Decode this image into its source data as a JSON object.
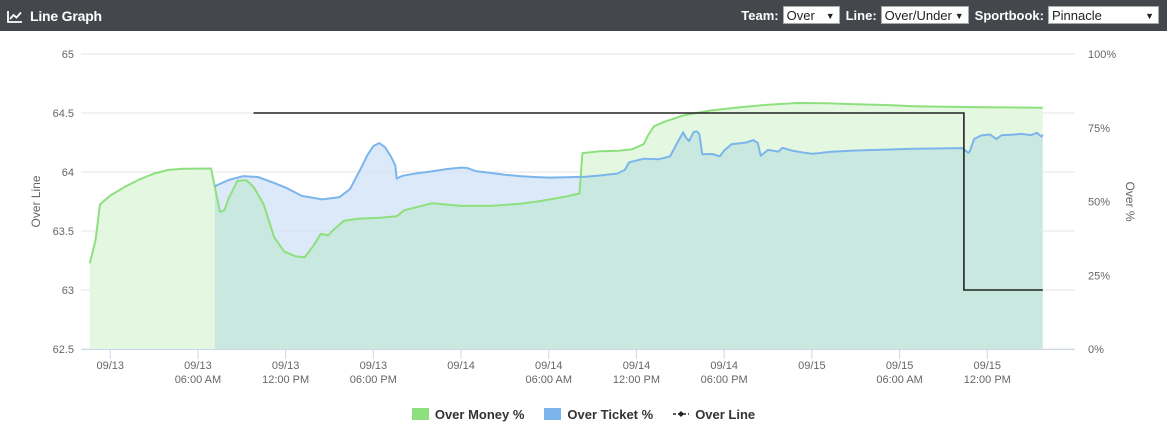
{
  "header": {
    "title": "Line Graph",
    "icon": "line-chart-icon",
    "controls": {
      "team_label": "Team:",
      "team_value": "Over",
      "line_label": "Line:",
      "line_value": "Over/Under",
      "sportsbook_label": "Sportbook:",
      "sportsbook_value": "Pinnacle"
    }
  },
  "colors": {
    "header_bg": "#44474c",
    "money": "#8ee07f",
    "money_fill": "#e3f8df",
    "ticket": "#7cb5ec",
    "ticket_fill": "#cfe1f6",
    "overlap_fill": "#c9e9e0",
    "over_line": "#222222"
  },
  "chart_data": {
    "type": "line",
    "title": "",
    "xlabel": "",
    "ylabel_left": "Over Line",
    "ylabel_right": "Over %",
    "ylim_left": [
      62.5,
      65
    ],
    "ylim_right": [
      0,
      100
    ],
    "yticks_left": [
      "62.5",
      "63",
      "63.5",
      "64",
      "64.5",
      "65"
    ],
    "yticks_right": [
      "0%",
      "25%",
      "50%",
      "75%",
      "100%"
    ],
    "x_range_hours": [
      -2,
      66
    ],
    "x_ticks": [
      {
        "t": 0,
        "line1": "09/13",
        "line2": ""
      },
      {
        "t": 6,
        "line1": "09/13",
        "line2": "06:00 AM"
      },
      {
        "t": 12,
        "line1": "09/13",
        "line2": "12:00 PM"
      },
      {
        "t": 18,
        "line1": "09/13",
        "line2": "06:00 PM"
      },
      {
        "t": 24,
        "line1": "09/14",
        "line2": ""
      },
      {
        "t": 30,
        "line1": "09/14",
        "line2": "06:00 AM"
      },
      {
        "t": 36,
        "line1": "09/14",
        "line2": "12:00 PM"
      },
      {
        "t": 42,
        "line1": "09/14",
        "line2": "06:00 PM"
      },
      {
        "t": 48,
        "line1": "09/15",
        "line2": ""
      },
      {
        "t": 54,
        "line1": "09/15",
        "line2": "06:00 AM"
      },
      {
        "t": 60,
        "line1": "09/15",
        "line2": "12:00 PM"
      }
    ],
    "grid": true,
    "legend_position": "bottom-center",
    "series": [
      {
        "name": "Over Money %",
        "axis": "right",
        "kind": "area",
        "points": [
          [
            -1.4,
            29
          ],
          [
            -1.0,
            37
          ],
          [
            -0.7,
            49
          ],
          [
            0,
            52
          ],
          [
            1,
            55
          ],
          [
            2,
            57.5
          ],
          [
            3,
            59.5
          ],
          [
            4,
            60.7
          ],
          [
            5,
            61.1
          ],
          [
            6.9,
            61.2
          ],
          [
            7.15,
            55
          ],
          [
            7.5,
            46.5
          ],
          [
            7.8,
            47
          ],
          [
            8.1,
            51
          ],
          [
            8.7,
            57
          ],
          [
            9.3,
            57.2
          ],
          [
            9.8,
            55
          ],
          [
            10.5,
            49
          ],
          [
            11.2,
            38
          ],
          [
            11.9,
            33
          ],
          [
            12.7,
            31.4
          ],
          [
            13.3,
            31.1
          ],
          [
            13.9,
            35
          ],
          [
            14.4,
            39
          ],
          [
            14.9,
            38.5
          ],
          [
            15.4,
            41
          ],
          [
            16,
            43.5
          ],
          [
            17,
            44.2
          ],
          [
            18.5,
            44.5
          ],
          [
            19.6,
            45
          ],
          [
            20.1,
            47
          ],
          [
            22,
            49.4
          ],
          [
            24,
            48.5
          ],
          [
            26,
            48.5
          ],
          [
            28,
            49.2
          ],
          [
            29.5,
            50.2
          ],
          [
            31.2,
            51.7
          ],
          [
            32.1,
            52.7
          ],
          [
            32.3,
            66.4
          ],
          [
            33.5,
            67
          ],
          [
            34.8,
            67.2
          ],
          [
            35.7,
            67.7
          ],
          [
            36.5,
            69.5
          ],
          [
            36.8,
            72.5
          ],
          [
            37.2,
            75.5
          ],
          [
            37.9,
            77
          ],
          [
            39.3,
            79.3
          ],
          [
            41,
            80.8
          ],
          [
            43,
            81.9
          ],
          [
            45,
            82.8
          ],
          [
            47,
            83.4
          ],
          [
            49,
            83.3
          ],
          [
            51,
            83
          ],
          [
            53,
            82.7
          ],
          [
            55,
            82.3
          ],
          [
            57,
            82.1
          ],
          [
            59,
            82
          ],
          [
            61,
            81.9
          ],
          [
            63.8,
            81.8
          ]
        ]
      },
      {
        "name": "Over Ticket %",
        "axis": "right",
        "kind": "area",
        "points": [
          [
            7.15,
            55.2
          ],
          [
            8.1,
            57.3
          ],
          [
            9.1,
            58.6
          ],
          [
            10.1,
            58.3
          ],
          [
            11.1,
            56.5
          ],
          [
            12.1,
            54.5
          ],
          [
            13.1,
            51.9
          ],
          [
            14.5,
            50.7
          ],
          [
            15.7,
            51.5
          ],
          [
            16.4,
            54.2
          ],
          [
            17.2,
            61.8
          ],
          [
            17.6,
            65.8
          ],
          [
            18,
            68.8
          ],
          [
            18.4,
            69.8
          ],
          [
            18.8,
            68.4
          ],
          [
            19.2,
            65.3
          ],
          [
            19.5,
            62.2
          ],
          [
            19.6,
            57.8
          ],
          [
            20,
            58.7
          ],
          [
            21,
            59.6
          ],
          [
            22,
            60.2
          ],
          [
            23,
            61
          ],
          [
            24,
            61.5
          ],
          [
            24.4,
            61.4
          ],
          [
            25,
            60.3
          ],
          [
            26,
            59.7
          ],
          [
            27,
            59.1
          ],
          [
            28,
            58.6
          ],
          [
            29,
            58.3
          ],
          [
            30,
            58.1
          ],
          [
            31.2,
            58.2
          ],
          [
            32.5,
            58.4
          ],
          [
            33.5,
            58.8
          ],
          [
            34.7,
            59.5
          ],
          [
            35.2,
            60.7
          ],
          [
            35.5,
            63.3
          ],
          [
            36.5,
            64.5
          ],
          [
            37.5,
            64.3
          ],
          [
            38.3,
            65.3
          ],
          [
            38.8,
            70
          ],
          [
            39.2,
            73.5
          ],
          [
            39.4,
            71.5
          ],
          [
            39.6,
            70.5
          ],
          [
            39.9,
            73.5
          ],
          [
            40.1,
            73.8
          ],
          [
            40.3,
            72.9
          ],
          [
            40.5,
            66
          ],
          [
            41.2,
            66.1
          ],
          [
            41.7,
            65.3
          ],
          [
            42,
            67.3
          ],
          [
            42.5,
            69.4
          ],
          [
            43.5,
            70
          ],
          [
            44,
            70.8
          ],
          [
            44.3,
            69.8
          ],
          [
            44.5,
            65.5
          ],
          [
            45,
            67.5
          ],
          [
            45.7,
            66.9
          ],
          [
            46,
            68.2
          ],
          [
            46.6,
            67.3
          ],
          [
            47.5,
            66.5
          ],
          [
            48,
            66.2
          ],
          [
            48.5,
            66.4
          ],
          [
            49.2,
            66.8
          ],
          [
            51,
            67.3
          ],
          [
            53,
            67.6
          ],
          [
            55,
            67.9
          ],
          [
            57,
            68
          ],
          [
            58.3,
            68.1
          ],
          [
            58.7,
            66.5
          ],
          [
            58.8,
            67
          ],
          [
            59.1,
            71.2
          ],
          [
            59.6,
            72.4
          ],
          [
            60.2,
            72.7
          ],
          [
            60.6,
            71.2
          ],
          [
            61,
            72.5
          ],
          [
            61.7,
            72.6
          ],
          [
            62.3,
            72.9
          ],
          [
            63,
            72.5
          ],
          [
            63.4,
            73.3
          ],
          [
            63.7,
            72
          ],
          [
            63.8,
            72.6
          ]
        ]
      },
      {
        "name": "Over Line",
        "axis": "left",
        "kind": "step",
        "points": [
          [
            9.8,
            64.5
          ],
          [
            58.4,
            64.5
          ],
          [
            58.4,
            63
          ],
          [
            63.8,
            63
          ]
        ]
      }
    ]
  },
  "legend": [
    {
      "label": "Over Money %",
      "color": "#8ee07f",
      "symbol": "square"
    },
    {
      "label": "Over Ticket %",
      "color": "#7cb5ec",
      "symbol": "square"
    },
    {
      "label": "Over Line",
      "color": "#222222",
      "symbol": "line-marker"
    }
  ]
}
